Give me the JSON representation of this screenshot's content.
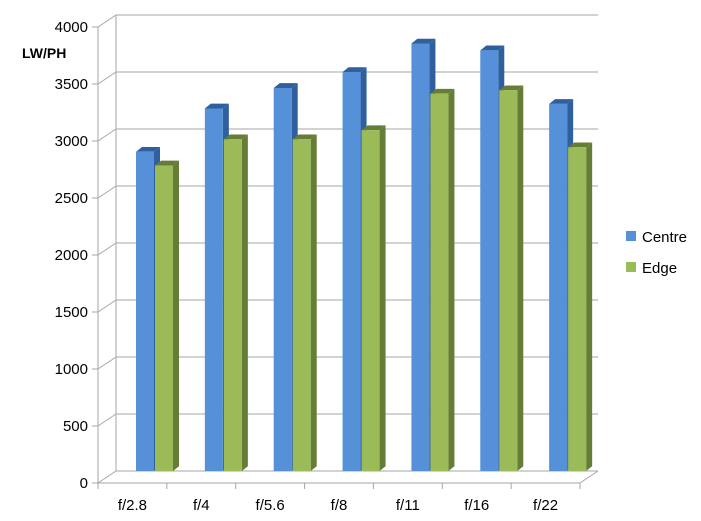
{
  "chart_data": {
    "type": "bar",
    "variant": "3d-clustered-column",
    "title": "",
    "xlabel": "",
    "ylabel": "LW/PH",
    "categories": [
      "f/2.8",
      "f/4",
      "f/5.6",
      "f/8",
      "f/11",
      "f/16",
      "f/22"
    ],
    "series": [
      {
        "name": "Centre",
        "values": [
          2800,
          3180,
          3360,
          3500,
          3750,
          3690,
          3220
        ],
        "color": "#5590d8",
        "side_color": "#2f5f9c"
      },
      {
        "name": "Edge",
        "values": [
          2680,
          2910,
          2910,
          2990,
          3310,
          3340,
          2840
        ],
        "color": "#9bbb59",
        "side_color": "#657d36"
      }
    ],
    "ylim": [
      0,
      4000
    ],
    "y_ticks": [
      0,
      500,
      1000,
      1500,
      2000,
      2500,
      3000,
      3500,
      4000
    ],
    "grid": true,
    "legend_position": "right"
  }
}
